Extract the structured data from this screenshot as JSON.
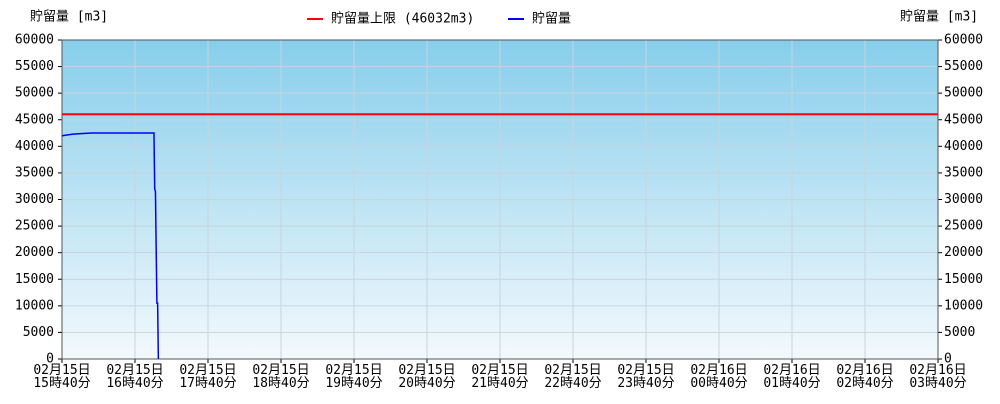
{
  "chart_data": {
    "type": "line",
    "y_label": "貯留量 [m3]",
    "y2_label": "貯留量 [m3]",
    "series": [
      {
        "name": "貯留量上限 (46032m3)",
        "color": "#ff0000",
        "x": [
          0,
          12
        ],
        "values": [
          46032,
          46032
        ]
      },
      {
        "name": "貯留量",
        "color": "#0000ff",
        "x": [
          0,
          0.15,
          0.4,
          1.26,
          1.27,
          1.28,
          1.3,
          1.31,
          1.32
        ],
        "values": [
          42000,
          42300,
          42500,
          42500,
          32000,
          31500,
          10500,
          10500,
          0
        ]
      }
    ],
    "xlim": [
      0,
      12
    ],
    "xticks": [
      {
        "value": 0,
        "label": "02月15日 15時40分"
      },
      {
        "value": 1,
        "label": "02月15日 16時40分"
      },
      {
        "value": 2,
        "label": "02月15日 17時40分"
      },
      {
        "value": 3,
        "label": "02月15日 18時40分"
      },
      {
        "value": 4,
        "label": "02月15日 19時40分"
      },
      {
        "value": 5,
        "label": "02月15日 20時40分"
      },
      {
        "value": 6,
        "label": "02月15日 21時40分"
      },
      {
        "value": 7,
        "label": "02月15日 22時40分"
      },
      {
        "value": 8,
        "label": "02月15日 23時40分"
      },
      {
        "value": 9,
        "label": "02月16日 00時40分"
      },
      {
        "value": 10,
        "label": "02月16日 01時40分"
      },
      {
        "value": 11,
        "label": "02月16日 02時40分"
      },
      {
        "value": 12,
        "label": "02月16日 03時40分"
      }
    ],
    "ylim": [
      0,
      60000
    ],
    "yticks": [
      0,
      5000,
      10000,
      15000,
      20000,
      25000,
      30000,
      35000,
      40000,
      45000,
      50000,
      55000,
      60000
    ],
    "y2lim": [
      0,
      60000
    ],
    "y2ticks": [
      0,
      5000,
      10000,
      15000,
      20000,
      25000,
      30000,
      35000,
      40000,
      45000,
      50000,
      55000,
      60000
    ],
    "grid": true
  }
}
